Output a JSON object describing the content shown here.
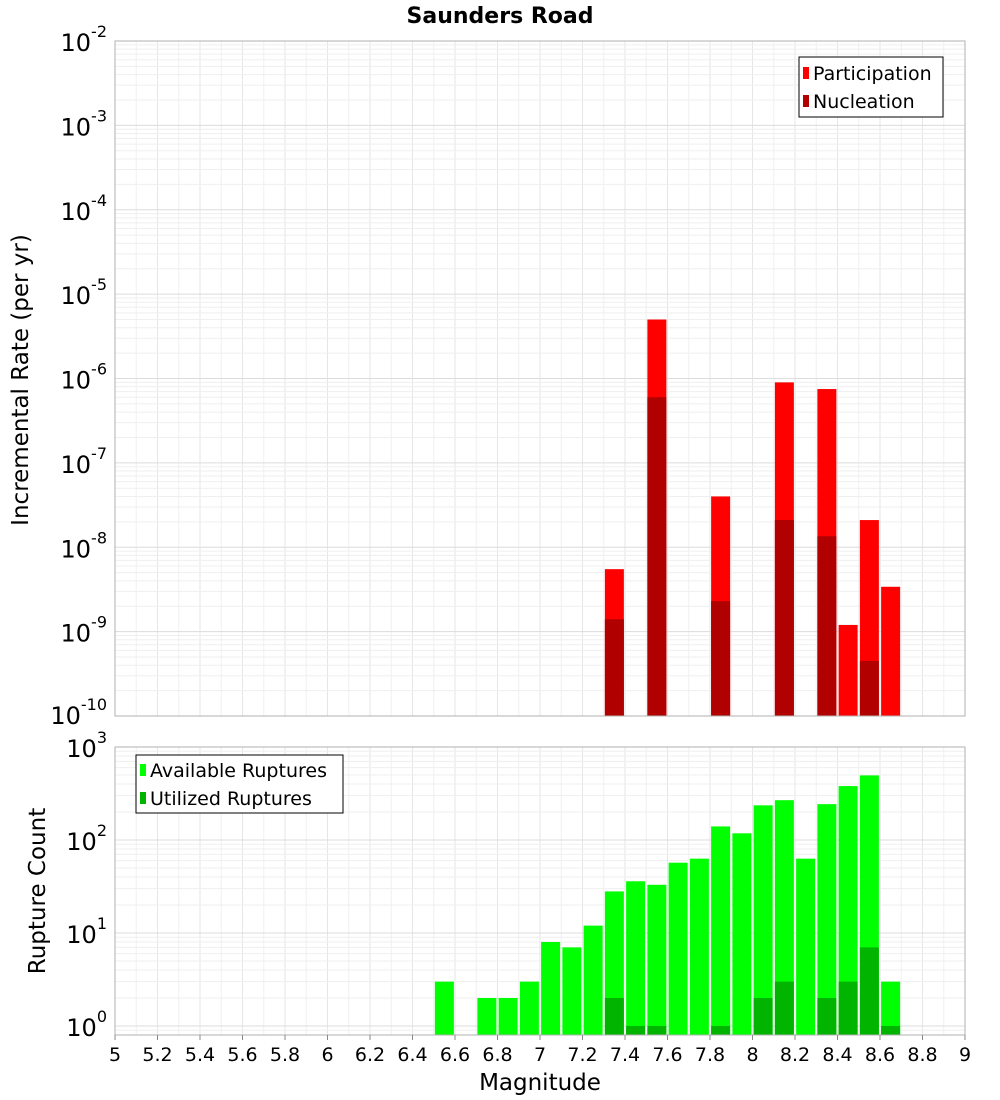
{
  "chart_data": [
    {
      "type": "bar",
      "title": "Saunders Road",
      "ylabel": "Incremental Rate (per yr)",
      "yscale": "log",
      "ylim": [
        1e-10,
        0.01
      ],
      "xlim": [
        5,
        9
      ],
      "y_tick_labels": [
        {
          "base": "10",
          "exp": "-2"
        },
        {
          "base": "10",
          "exp": "-3"
        },
        {
          "base": "10",
          "exp": "-4"
        },
        {
          "base": "10",
          "exp": "-5"
        },
        {
          "base": "10",
          "exp": "-6"
        },
        {
          "base": "10",
          "exp": "-7"
        },
        {
          "base": "10",
          "exp": "-8"
        },
        {
          "base": "10",
          "exp": "-9"
        },
        {
          "base": "10",
          "exp": "-10"
        }
      ],
      "grid": true,
      "legend": {
        "placement": "top-right",
        "entries": [
          "Participation",
          "Nucleation"
        ]
      },
      "series": [
        {
          "name": "Participation",
          "color": "#ff0000",
          "x": [
            7.35,
            7.55,
            7.85,
            8.15,
            8.35,
            8.45,
            8.55,
            8.65
          ],
          "values": [
            5.5e-09,
            5e-06,
            4e-08,
            9e-07,
            7.5e-07,
            1.2e-09,
            2.1e-08,
            3.4e-09
          ]
        },
        {
          "name": "Nucleation",
          "color": "#b00000",
          "x": [
            7.35,
            7.55,
            7.85,
            8.15,
            8.35,
            8.55
          ],
          "values": [
            1.4e-09,
            6e-07,
            2.3e-09,
            2.1e-08,
            1.35e-08,
            4.5e-10
          ]
        }
      ]
    },
    {
      "type": "bar",
      "xlabel": "Magnitude",
      "ylabel": "Rupture Count",
      "yscale": "log",
      "ylim": [
        0.8,
        1000
      ],
      "xlim": [
        5,
        9
      ],
      "y_tick_labels": [
        {
          "base": "10",
          "exp": "3"
        },
        {
          "base": "10",
          "exp": "2"
        },
        {
          "base": "10",
          "exp": "1"
        },
        {
          "base": "10",
          "exp": "0"
        }
      ],
      "x_tick_labels": [
        "5",
        "5.2",
        "5.4",
        "5.6",
        "5.8",
        "6",
        "6.2",
        "6.4",
        "6.6",
        "6.8",
        "7",
        "7.2",
        "7.4",
        "7.6",
        "7.8",
        "8",
        "8.2",
        "8.4",
        "8.6",
        "8.8",
        "9"
      ],
      "grid": true,
      "legend": {
        "placement": "top-left",
        "entries": [
          "Available Ruptures",
          "Utilized Ruptures"
        ]
      },
      "series": [
        {
          "name": "Available Ruptures",
          "color": "#00ff00",
          "x": [
            6.55,
            6.75,
            6.85,
            6.95,
            7.05,
            7.15,
            7.25,
            7.35,
            7.45,
            7.55,
            7.65,
            7.75,
            7.85,
            7.95,
            8.05,
            8.15,
            8.25,
            8.35,
            8.45,
            8.55,
            8.65
          ],
          "values": [
            3,
            2,
            2,
            3,
            8,
            7,
            12,
            28,
            36,
            33,
            57,
            63,
            140,
            118,
            236,
            268,
            63,
            243,
            380,
            495,
            3
          ]
        },
        {
          "name": "Utilized Ruptures",
          "color": "#00b400",
          "x": [
            7.35,
            7.45,
            7.55,
            7.85,
            8.05,
            8.15,
            8.35,
            8.45,
            8.55,
            8.65
          ],
          "values": [
            2,
            1,
            1,
            1,
            2,
            3,
            2,
            3,
            7,
            1
          ]
        }
      ]
    }
  ]
}
